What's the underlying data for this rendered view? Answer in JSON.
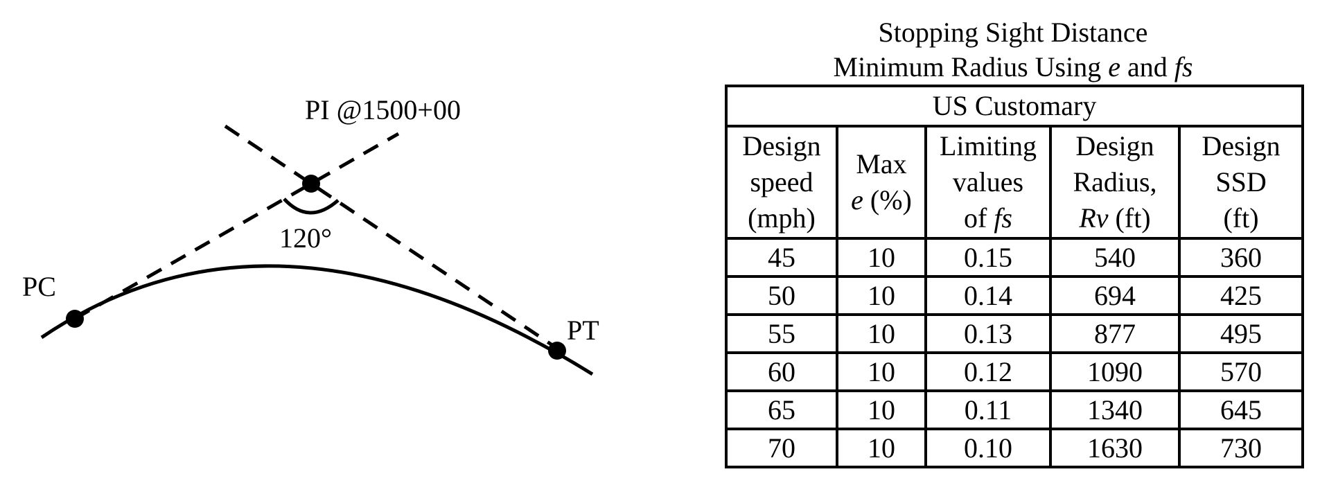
{
  "diagram": {
    "pi_label": "PI @1500+00",
    "angle_label": "120°",
    "pc_label": "PC",
    "pt_label": "PT"
  },
  "table": {
    "title_line1": "Stopping Sight Distance",
    "title_line2": {
      "prefix": "Minimum Radius Using ",
      "e": "e",
      "and": " and ",
      "fs": "fs"
    },
    "caption": "US Customary",
    "headers": {
      "design_speed": [
        "Design",
        "speed",
        "(mph)"
      ],
      "max_e": {
        "line1": "Max",
        "e": "e",
        "pct": " (%)"
      },
      "limiting": {
        "line1": "Limiting",
        "line2": "values",
        "of": "of ",
        "fs": "fs"
      },
      "design_radius": {
        "line1": "Design",
        "line2": "Radius,",
        "rv": "Rv",
        "ft": " (ft)"
      },
      "design_ssd": [
        "Design",
        "SSD",
        "(ft)"
      ]
    },
    "rows": [
      [
        "45",
        "10",
        "0.15",
        "540",
        "360"
      ],
      [
        "50",
        "10",
        "0.14",
        "694",
        "425"
      ],
      [
        "55",
        "10",
        "0.13",
        "877",
        "495"
      ],
      [
        "60",
        "10",
        "0.12",
        "1090",
        "570"
      ],
      [
        "65",
        "10",
        "0.11",
        "1340",
        "645"
      ],
      [
        "70",
        "10",
        "0.10",
        "1630",
        "730"
      ]
    ]
  }
}
